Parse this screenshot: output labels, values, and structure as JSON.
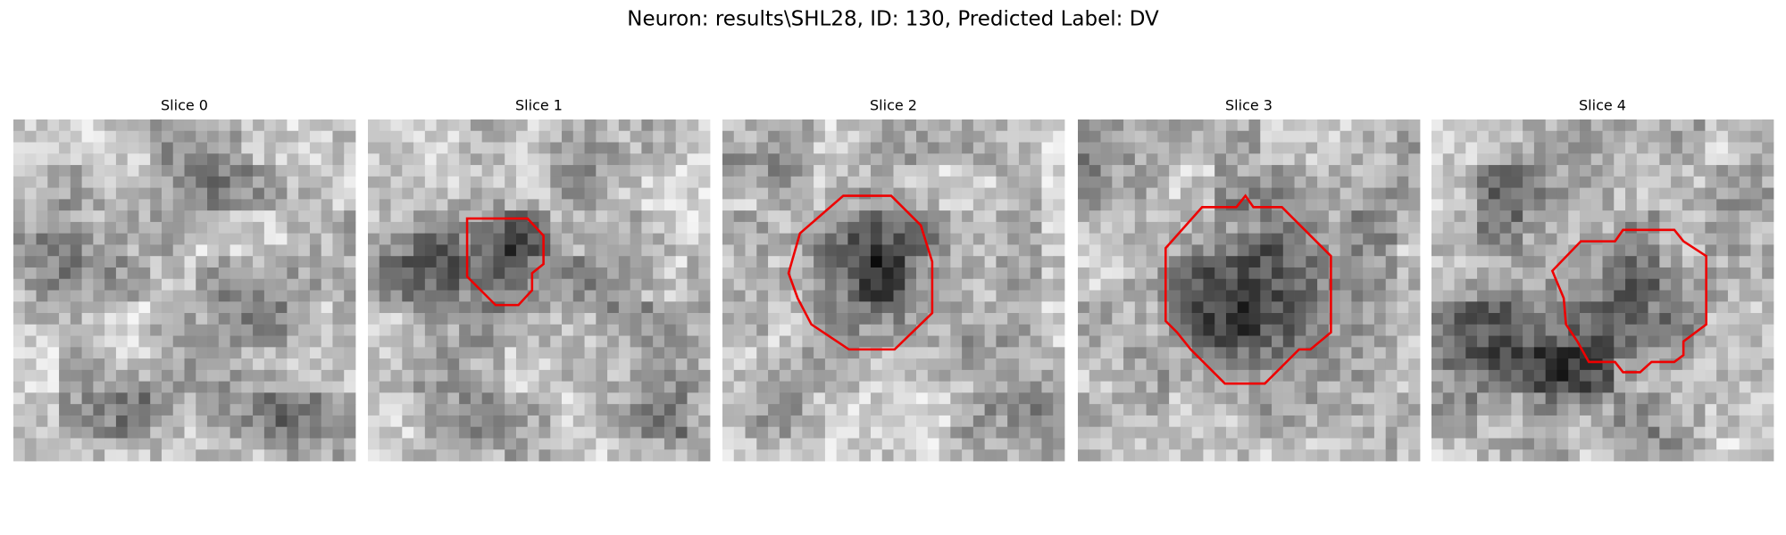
{
  "title": "Neuron: results\\SHL28, ID: 130, Predicted Label: DV",
  "panels": [
    {
      "title": "Slice 0"
    },
    {
      "title": "Slice 1"
    },
    {
      "title": "Slice 2"
    },
    {
      "title": "Slice 3"
    },
    {
      "title": "Slice 4"
    }
  ]
}
